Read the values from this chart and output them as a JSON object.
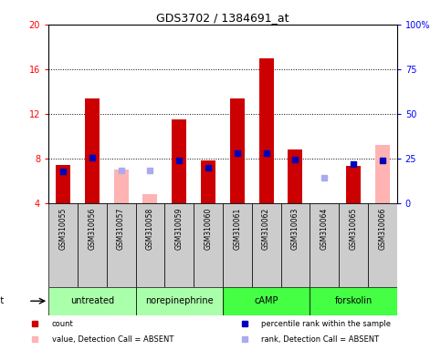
{
  "title": "GDS3702 / 1384691_at",
  "samples": [
    "GSM310055",
    "GSM310056",
    "GSM310057",
    "GSM310058",
    "GSM310059",
    "GSM310060",
    "GSM310061",
    "GSM310062",
    "GSM310063",
    "GSM310064",
    "GSM310065",
    "GSM310066"
  ],
  "red_values": [
    7.4,
    13.4,
    null,
    null,
    11.5,
    7.8,
    13.4,
    17.0,
    8.8,
    3.8,
    7.3,
    null
  ],
  "pink_values": [
    null,
    null,
    7.0,
    4.8,
    null,
    null,
    null,
    null,
    null,
    null,
    null,
    9.2
  ],
  "blue_values": [
    6.8,
    8.1,
    null,
    null,
    7.8,
    7.2,
    8.5,
    8.5,
    7.9,
    null,
    7.5,
    7.8
  ],
  "lightblue_values": [
    null,
    null,
    6.9,
    6.9,
    null,
    null,
    null,
    null,
    null,
    6.3,
    null,
    null
  ],
  "groups": [
    {
      "label": "untreated",
      "start": 0,
      "end": 3,
      "color": "#aaffaa"
    },
    {
      "label": "norepinephrine",
      "start": 3,
      "end": 6,
      "color": "#aaffaa"
    },
    {
      "label": "cAMP",
      "start": 6,
      "end": 9,
      "color": "#44ff44"
    },
    {
      "label": "forskolin",
      "start": 9,
      "end": 12,
      "color": "#44ff44"
    }
  ],
  "ylim_left": [
    4,
    20
  ],
  "ylim_right": [
    0,
    100
  ],
  "yticks_left": [
    4,
    8,
    12,
    16,
    20
  ],
  "yticks_right": [
    0,
    25,
    50,
    75,
    100
  ],
  "red_color": "#cc0000",
  "pink_color": "#ffb3b3",
  "blue_color": "#0000bb",
  "lightblue_color": "#aaaaee",
  "bg_color": "#cccccc",
  "plot_bg": "#ffffff",
  "bar_width": 0.5,
  "marker_size": 5
}
